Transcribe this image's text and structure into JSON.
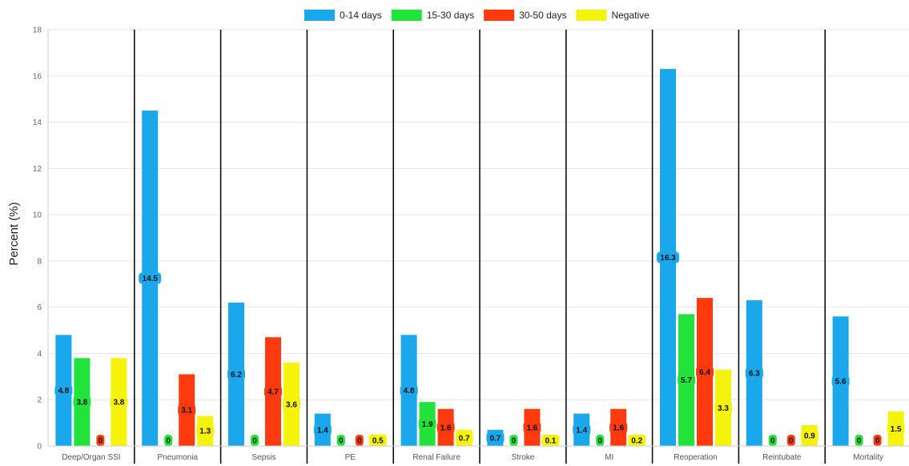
{
  "chart_data": {
    "type": "bar",
    "ylabel": "Percent (%)",
    "ylim": [
      0,
      18
    ],
    "yticks": [
      "0",
      "2",
      "4",
      "6",
      "8",
      "10",
      "12",
      "14",
      "16",
      "18"
    ],
    "grid": "horizontal",
    "legend_position": "top-center",
    "categories": [
      "Deep/Organ SSI",
      "Pneumonia",
      "Sepsis",
      "PE",
      "Renal Failure",
      "Stroke",
      "MI",
      "Reoperation",
      "Reintubate",
      "Mortality"
    ],
    "series": [
      {
        "name": "0-14 days",
        "color": "#1aa7ec",
        "values": [
          4.8,
          14.5,
          6.2,
          1.4,
          4.8,
          0.7,
          1.4,
          16.3,
          6.3,
          5.6
        ],
        "labels": [
          "4.8",
          "14.5",
          "6.2",
          "1.4",
          "4.8",
          "0.7",
          "1.4",
          "16.3",
          "6.3",
          "5.6"
        ]
      },
      {
        "name": "15-30 days",
        "color": "#22e33a",
        "values": [
          3.8,
          0,
          0,
          0,
          1.9,
          0,
          0,
          5.7,
          0,
          0
        ],
        "labels": [
          "3.8",
          "0",
          "0",
          "0",
          "1.9",
          "0",
          "0",
          "5.7",
          "0",
          "0"
        ]
      },
      {
        "name": "30-50 days",
        "color": "#ff3a0f",
        "values": [
          0,
          3.1,
          4.7,
          0,
          1.6,
          1.6,
          1.6,
          6.4,
          0,
          0
        ],
        "labels": [
          "0",
          "3.1",
          "4.7",
          "0",
          "1.6",
          "1.6",
          "1.6",
          "6.4",
          "0",
          "0"
        ]
      },
      {
        "name": "Negative",
        "color": "#f5f20c",
        "values": [
          3.8,
          1.3,
          3.6,
          0.5,
          0.7,
          0.1,
          0.2,
          3.3,
          0.9,
          1.5
        ],
        "labels": [
          "3.8",
          "1.3",
          "3.6",
          "0.5",
          "0.7",
          "0.1",
          "0.2",
          "3.3",
          "0.9",
          "1.5"
        ]
      }
    ]
  }
}
